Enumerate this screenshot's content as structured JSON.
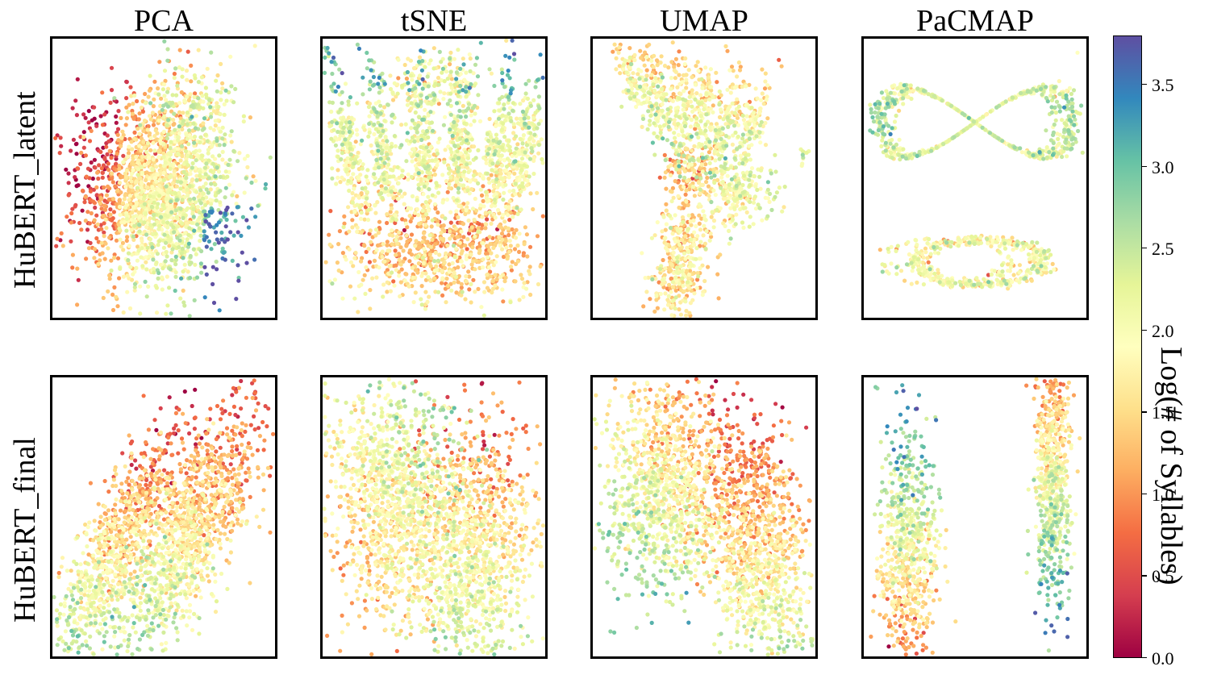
{
  "chart_data": {
    "type": "scatter",
    "columns": [
      "PCA",
      "tSNE",
      "UMAP",
      "PaCMAP"
    ],
    "rows": [
      "HuBERT_latent",
      "HuBERT_final"
    ],
    "colorbar": {
      "label": "Log(# of Syllables)",
      "range": [
        0.0,
        3.8
      ],
      "ticks": [
        "0.0",
        "0.5",
        "1.0",
        "1.5",
        "2.0",
        "2.5",
        "3.0",
        "3.5"
      ],
      "colormap": "Spectral",
      "colors": [
        "#9e0142",
        "#d53e4f",
        "#f46d43",
        "#fdae61",
        "#fee08b",
        "#ffffbf",
        "#e6f598",
        "#abdda4",
        "#66c2a5",
        "#3288bd",
        "#5e4fa2"
      ]
    },
    "axes_visible": false,
    "panels": [
      {
        "row": "HuBERT_latent",
        "method": "PCA",
        "structure": "one broad cloud; low values at left, high values at lower-right and right edge"
      },
      {
        "row": "HuBERT_latent",
        "method": "tSNE",
        "structure": "fan of elongated lobes with a lower dense cluster; low values toward bottom"
      },
      {
        "row": "HuBERT_latent",
        "method": "UMAP",
        "structure": "branching filaments meeting at a central hub"
      },
      {
        "row": "HuBERT_latent",
        "method": "PaCMAP",
        "structure": "figure-eight loop at top and a teardrop loop at bottom"
      },
      {
        "row": "HuBERT_final",
        "method": "PCA",
        "structure": "two diagonal elongated clusters; high values at lower-left ends"
      },
      {
        "row": "HuBERT_final",
        "method": "tSNE",
        "structure": "two large blobs; high values at bottom tips"
      },
      {
        "row": "HuBERT_final",
        "method": "UMAP",
        "structure": "two large blobs; high values at lower tips"
      },
      {
        "row": "HuBERT_final",
        "method": "PaCMAP",
        "structure": "two narrow vertical spindles; high values at the tips"
      }
    ]
  }
}
